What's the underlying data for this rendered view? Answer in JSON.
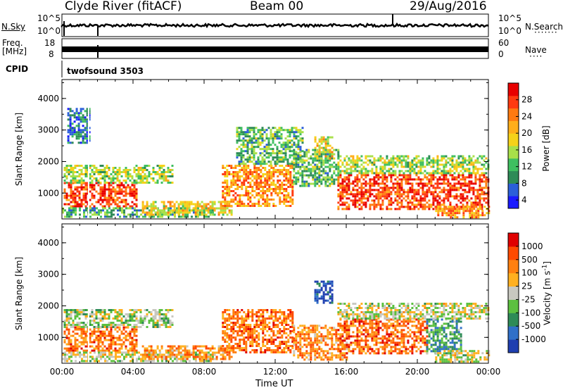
{
  "header": {
    "station": "Clyde River (fitACF)",
    "beam": "Beam 00",
    "date": "29/Aug/2016"
  },
  "top_panel": {
    "nsky_label": "N.Sky",
    "nsky_ticks": [
      "10^5",
      "10^0"
    ],
    "nsearch_label": "N.Search",
    "nsearch_ticks": [
      "10^5",
      "10^0"
    ],
    "freq_label": "Freq.",
    "freq_unit": "[MHz]",
    "freq_ticks": [
      "18",
      "8"
    ],
    "nave_label": "Nave",
    "nave_ticks": [
      "60",
      "0"
    ],
    "cpid_label": "CPID",
    "cpid_value": "twofsound 3503"
  },
  "chart_data": [
    {
      "type": "heatmap",
      "name": "power",
      "ylabel": "Slant Range [km]",
      "xlabel": "",
      "x_ticks": [
        "00:00",
        "04:00",
        "08:00",
        "12:00",
        "16:00",
        "20:00",
        "00:00"
      ],
      "y_ticks": [
        "1000",
        "2000",
        "3000",
        "4000"
      ],
      "ylim": [
        180,
        4600
      ],
      "xlim_hours": [
        0,
        24
      ],
      "colorbar_label": "Power [dB]",
      "colorbar_ticks": [
        "28",
        "24",
        "20",
        "16",
        "12",
        "8",
        "4"
      ],
      "colorbar_colors": [
        "#1a1aff",
        "#2b5fd9",
        "#2e8b57",
        "#3fbf60",
        "#a8e04a",
        "#f5d21a",
        "#ffae1a",
        "#ff7a10",
        "#ff3a10",
        "#e80000"
      ],
      "echo_regions": [
        {
          "h0": 0.1,
          "h1": 4.2,
          "r0": 550,
          "r1": 1350,
          "level": 0.85
        },
        {
          "h0": 0.1,
          "h1": 6.2,
          "r0": 1350,
          "r1": 1900,
          "level": 0.45
        },
        {
          "h0": 0.3,
          "h1": 1.5,
          "r0": 2600,
          "r1": 3700,
          "level": 0.2
        },
        {
          "h0": 0.0,
          "h1": 8.5,
          "r0": 250,
          "r1": 550,
          "level": 0.3
        },
        {
          "h0": 4.5,
          "h1": 9.5,
          "r0": 300,
          "r1": 750,
          "level": 0.55
        },
        {
          "h0": 9.0,
          "h1": 13.0,
          "r0": 600,
          "r1": 1900,
          "level": 0.7
        },
        {
          "h0": 9.8,
          "h1": 13.5,
          "r0": 1900,
          "r1": 3100,
          "level": 0.35
        },
        {
          "h0": 13.0,
          "h1": 15.5,
          "r0": 1200,
          "r1": 2400,
          "level": 0.35
        },
        {
          "h0": 14.2,
          "h1": 15.2,
          "r0": 2100,
          "r1": 2800,
          "level": 0.55
        },
        {
          "h0": 15.5,
          "h1": 24.0,
          "r0": 500,
          "r1": 1600,
          "level": 0.85
        },
        {
          "h0": 15.5,
          "h1": 24.0,
          "r0": 1600,
          "r1": 2200,
          "level": 0.45
        },
        {
          "h0": 21.0,
          "h1": 24.0,
          "r0": 200,
          "r1": 600,
          "level": 0.7
        }
      ]
    },
    {
      "type": "heatmap",
      "name": "velocity",
      "ylabel": "Slant Range [km]",
      "xlabel": "Time UT",
      "x_ticks": [
        "00:00",
        "04:00",
        "08:00",
        "12:00",
        "16:00",
        "20:00",
        "00:00"
      ],
      "y_ticks": [
        "1000",
        "2000",
        "3000",
        "4000"
      ],
      "ylim": [
        180,
        4600
      ],
      "xlim_hours": [
        0,
        24
      ],
      "colorbar_label": "Velocity [m s^-1]",
      "colorbar_ticks": [
        "1000",
        "500",
        "100",
        "25",
        "-25",
        "-100",
        "-500",
        "-1000"
      ],
      "colorbar_colors": [
        "#1f3fb0",
        "#3070c8",
        "#2e8b57",
        "#5cc040",
        "#c8c8c0",
        "#ffb020",
        "#ff8010",
        "#ff4a00",
        "#e00000"
      ],
      "echo_regions": [
        {
          "h0": 0.1,
          "h1": 4.2,
          "r0": 550,
          "r1": 1350,
          "level": 0.75
        },
        {
          "h0": 0.1,
          "h1": 6.2,
          "r0": 1350,
          "r1": 1900,
          "level": 0.45
        },
        {
          "h0": 0.0,
          "h1": 8.5,
          "r0": 250,
          "r1": 550,
          "level": 0.5
        },
        {
          "h0": 4.5,
          "h1": 9.5,
          "r0": 300,
          "r1": 750,
          "level": 0.7
        },
        {
          "h0": 9.0,
          "h1": 13.0,
          "r0": 500,
          "r1": 1900,
          "level": 0.75
        },
        {
          "h0": 13.0,
          "h1": 16.0,
          "r0": 300,
          "r1": 1400,
          "level": 0.7
        },
        {
          "h0": 14.2,
          "h1": 15.2,
          "r0": 2100,
          "r1": 2800,
          "level": 0.1
        },
        {
          "h0": 15.5,
          "h1": 20.5,
          "r0": 500,
          "r1": 1600,
          "level": 0.78
        },
        {
          "h0": 20.5,
          "h1": 22.5,
          "r0": 500,
          "r1": 1600,
          "level": 0.3
        },
        {
          "h0": 15.5,
          "h1": 24.0,
          "r0": 1600,
          "r1": 2100,
          "level": 0.5
        },
        {
          "h0": 21.0,
          "h1": 24.0,
          "r0": 200,
          "r1": 600,
          "level": 0.5
        }
      ]
    }
  ]
}
